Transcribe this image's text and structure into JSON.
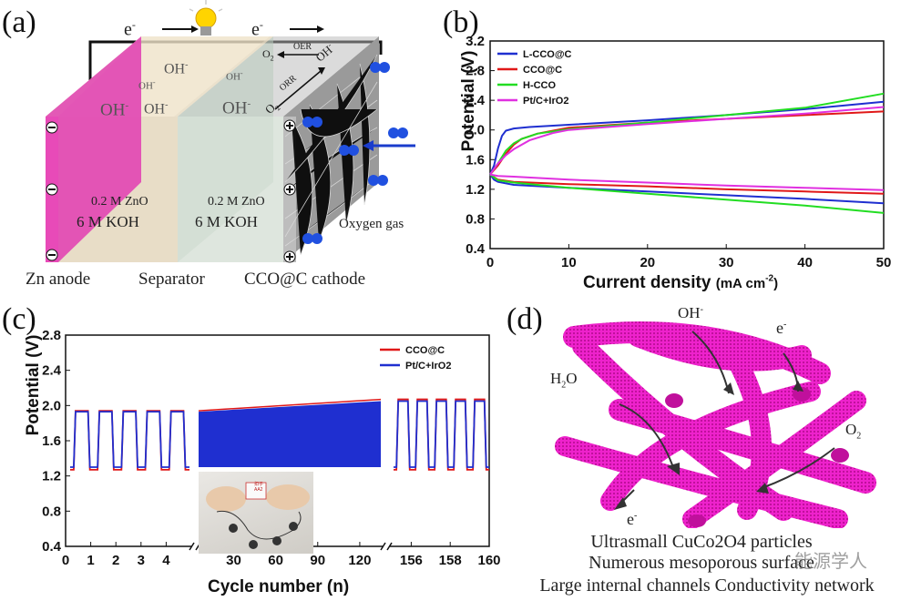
{
  "panel_a": {
    "label": "(a)",
    "electron_left": "e",
    "electron_right": "e",
    "electron_sup": "-",
    "oh": "OH",
    "oh_sup": "-",
    "o2_oer": "O",
    "o2_orr": "O",
    "o2_sub": "2",
    "oer": "OER",
    "orr": "ORR",
    "oh_arrow": "OH",
    "zno_left": "0.2 M ZnO",
    "koh_left": "6 M KOH",
    "zno_right": "0.2 M ZnO",
    "koh_right": "6 M KOH",
    "oxygen_gas": "Oxygen gas",
    "anode_label": "Zn anode",
    "separator_label": "Separator",
    "cathode_label": "CCO@C cathode",
    "minus_sign": "−",
    "plus_sign": "+",
    "colors": {
      "anode": "#e040b0",
      "separator": "#c9d8cc",
      "cathode": "#8a8a8a",
      "arrow": "#1a3ccc"
    }
  },
  "panel_b": {
    "label": "(b)",
    "chart_data": {
      "type": "line",
      "xlabel": "Current density",
      "xlabel_unit": "(mA cm",
      "xlabel_sup": "-2",
      "xlabel_close": ")",
      "ylabel": "Potential (V)",
      "xlim": [
        0,
        50
      ],
      "ylim": [
        0.4,
        3.2
      ],
      "xticks": [
        "0",
        "10",
        "20",
        "30",
        "40",
        "50"
      ],
      "yticks": [
        "0.4",
        "0.8",
        "1.2",
        "1.6",
        "2.0",
        "2.4",
        "2.8",
        "3.2"
      ],
      "legend": [
        "L-CCO@C",
        "CCO@C",
        "H-CCO",
        "Pt/C+IrO2"
      ],
      "series": [
        {
          "name": "L-CCO@C",
          "color": "#1f2fd0",
          "charge": [
            [
              0,
              1.4
            ],
            [
              0.5,
              1.52
            ],
            [
              1,
              1.75
            ],
            [
              1.5,
              1.92
            ],
            [
              2,
              1.99
            ],
            [
              3,
              2.02
            ],
            [
              5,
              2.04
            ],
            [
              10,
              2.07
            ],
            [
              20,
              2.13
            ],
            [
              30,
              2.2
            ],
            [
              40,
              2.28
            ],
            [
              50,
              2.38
            ]
          ],
          "discharge": [
            [
              0,
              1.4
            ],
            [
              0.5,
              1.33
            ],
            [
              1,
              1.3
            ],
            [
              3,
              1.26
            ],
            [
              10,
              1.22
            ],
            [
              20,
              1.17
            ],
            [
              30,
              1.12
            ],
            [
              40,
              1.07
            ],
            [
              50,
              1.01
            ]
          ]
        },
        {
          "name": "CCO@C",
          "color": "#e01818",
          "charge": [
            [
              0,
              1.4
            ],
            [
              1,
              1.52
            ],
            [
              2,
              1.68
            ],
            [
              3,
              1.8
            ],
            [
              4,
              1.88
            ],
            [
              6,
              1.95
            ],
            [
              8,
              1.99
            ],
            [
              10,
              2.03
            ],
            [
              20,
              2.1
            ],
            [
              30,
              2.15
            ],
            [
              40,
              2.2
            ],
            [
              50,
              2.25
            ]
          ],
          "discharge": [
            [
              0,
              1.4
            ],
            [
              1,
              1.33
            ],
            [
              3,
              1.3
            ],
            [
              10,
              1.27
            ],
            [
              20,
              1.24
            ],
            [
              30,
              1.2
            ],
            [
              40,
              1.17
            ],
            [
              50,
              1.14
            ]
          ]
        },
        {
          "name": "H-CCO",
          "color": "#22dd22",
          "charge": [
            [
              0,
              1.4
            ],
            [
              1,
              1.55
            ],
            [
              2,
              1.72
            ],
            [
              3,
              1.82
            ],
            [
              4,
              1.88
            ],
            [
              6,
              1.95
            ],
            [
              10,
              2.01
            ],
            [
              20,
              2.1
            ],
            [
              30,
              2.2
            ],
            [
              40,
              2.3
            ],
            [
              50,
              2.49
            ]
          ],
          "discharge": [
            [
              0,
              1.4
            ],
            [
              1,
              1.32
            ],
            [
              3,
              1.29
            ],
            [
              10,
              1.22
            ],
            [
              20,
              1.14
            ],
            [
              30,
              1.06
            ],
            [
              40,
              0.98
            ],
            [
              50,
              0.88
            ]
          ]
        },
        {
          "name": "Pt/C+IrO2",
          "color": "#e030e0",
          "charge": [
            [
              0,
              1.4
            ],
            [
              1,
              1.55
            ],
            [
              2,
              1.66
            ],
            [
              3,
              1.74
            ],
            [
              5,
              1.86
            ],
            [
              8,
              1.96
            ],
            [
              10,
              2.0
            ],
            [
              20,
              2.08
            ],
            [
              30,
              2.15
            ],
            [
              40,
              2.22
            ],
            [
              50,
              2.31
            ]
          ],
          "discharge": [
            [
              0,
              1.4
            ],
            [
              1,
              1.38
            ],
            [
              3,
              1.37
            ],
            [
              10,
              1.33
            ],
            [
              20,
              1.29
            ],
            [
              30,
              1.25
            ],
            [
              40,
              1.22
            ],
            [
              50,
              1.19
            ]
          ]
        }
      ]
    }
  },
  "panel_c": {
    "label": "(c)",
    "chart_data": {
      "type": "line",
      "xlabel": "Cycle number (n)",
      "ylabel": "Potential (V)",
      "ylim": [
        0.4,
        2.8
      ],
      "yticks": [
        "0.4",
        "0.8",
        "1.2",
        "1.6",
        "2.0",
        "2.4",
        "2.8"
      ],
      "xticks_seg1": [
        "0",
        "1",
        "2",
        "3",
        "4"
      ],
      "xticks_seg2": [
        "30",
        "60",
        "90",
        "120"
      ],
      "xticks_seg3": [
        "156",
        "158",
        "160"
      ],
      "legend": [
        "CCO@C",
        "Pt/C+IrO2"
      ],
      "series": [
        {
          "name": "CCO@C",
          "color": "#e01818",
          "charge_start": 1.94,
          "charge_end": 2.07,
          "discharge": 1.27
        },
        {
          "name": "Pt/C+IrO2",
          "color": "#1f2fd0",
          "charge_start": 1.93,
          "charge_end": 2.05,
          "discharge": 1.3
        }
      ],
      "segments": [
        {
          "range": [
            0,
            5
          ]
        },
        {
          "range": [
            5,
            135
          ]
        },
        {
          "range": [
            155,
            160
          ]
        }
      ]
    },
    "photo_card_top": "扣子",
    "photo_card_bottom": "AA2"
  },
  "panel_d": {
    "label": "(d)",
    "oh": "OH",
    "oh_sup": "-",
    "e_top": "e",
    "e_bottom": "e",
    "e_sup": "-",
    "h2o_h": "H",
    "h2o_sub": "2",
    "h2o_o": "O",
    "o2": "O",
    "o2_sub": "2",
    "caption_line1": "Ultrasmall CuCo2O4 particles",
    "caption_line2": "Numerous mesoporous surface",
    "caption_line3": "Large internal channels  Conductivity network",
    "watermark": "能源学人",
    "tube_color": "#ee22cc"
  }
}
